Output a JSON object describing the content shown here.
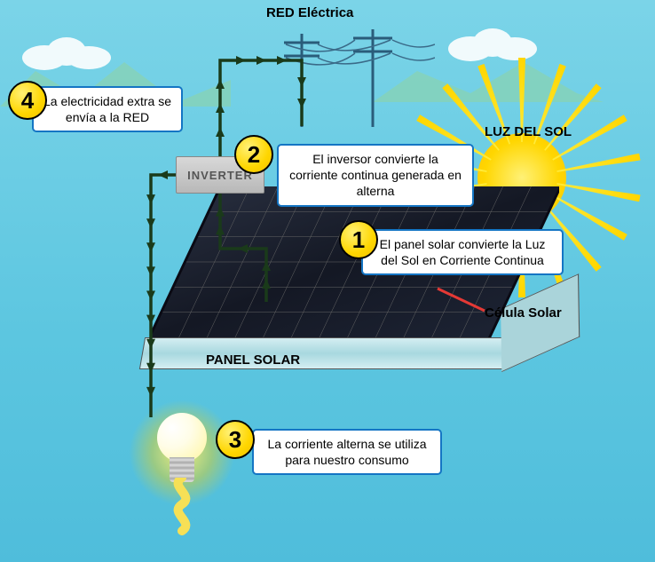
{
  "labels": {
    "grid": "RED Eléctrica",
    "sun": "LUZ DEL SOL",
    "panel": "PANEL SOLAR",
    "cell": "Célula Solar",
    "inverter": "INVERTER"
  },
  "steps": {
    "s1": {
      "num": "1",
      "text": "El panel solar convierte la Luz del Sol en Corriente Continua"
    },
    "s2": {
      "num": "2",
      "text": "El inversor convierte la corriente continua generada en alterna"
    },
    "s3": {
      "num": "3",
      "text": "La corriente alterna se utiliza para nuestro consumo"
    },
    "s4": {
      "num": "4",
      "text": "La electricidad extra se envía a la RED"
    }
  },
  "colors": {
    "sky_top": "#7bd4e8",
    "sky_bottom": "#4fbddb",
    "sun_core": "#ffd600",
    "callout_border": "#1475c4",
    "badge_fill": "#ffd600",
    "cell_fill": "#1a1f2e",
    "pointer": "#e53935",
    "flow": "#1a3a1a"
  }
}
